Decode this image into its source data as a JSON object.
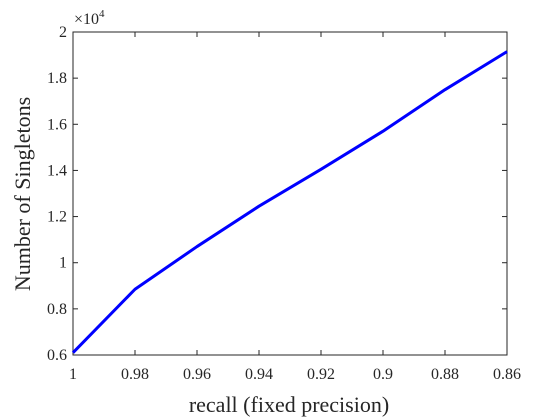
{
  "chart_data": {
    "type": "line",
    "xlabel": "recall (fixed precision)",
    "ylabel": "Number of Singletons",
    "y_multiplier_base": "×10",
    "y_multiplier_exp": "4",
    "x_reversed": true,
    "xlim": [
      0.86,
      1.0
    ],
    "ylim": [
      0.6,
      2.0
    ],
    "x_ticks": [
      1,
      0.98,
      0.96,
      0.94,
      0.92,
      0.9,
      0.88,
      0.86
    ],
    "x_tick_labels": [
      "1",
      "0.98",
      "0.96",
      "0.94",
      "0.92",
      "0.9",
      "0.88",
      "0.86"
    ],
    "y_ticks": [
      0.6,
      0.8,
      1.0,
      1.2,
      1.4,
      1.6,
      1.8,
      2.0
    ],
    "y_tick_labels": [
      "0.6",
      "0.8",
      "1",
      "1.2",
      "1.4",
      "1.6",
      "1.8",
      "2"
    ],
    "grid": false,
    "line_color": "#0000ff",
    "series": [
      {
        "x": [
          1.0,
          0.98,
          0.96,
          0.94,
          0.92,
          0.9,
          0.88,
          0.86
        ],
        "y": [
          0.61,
          0.885,
          1.07,
          1.245,
          1.405,
          1.57,
          1.75,
          1.915
        ]
      }
    ]
  }
}
